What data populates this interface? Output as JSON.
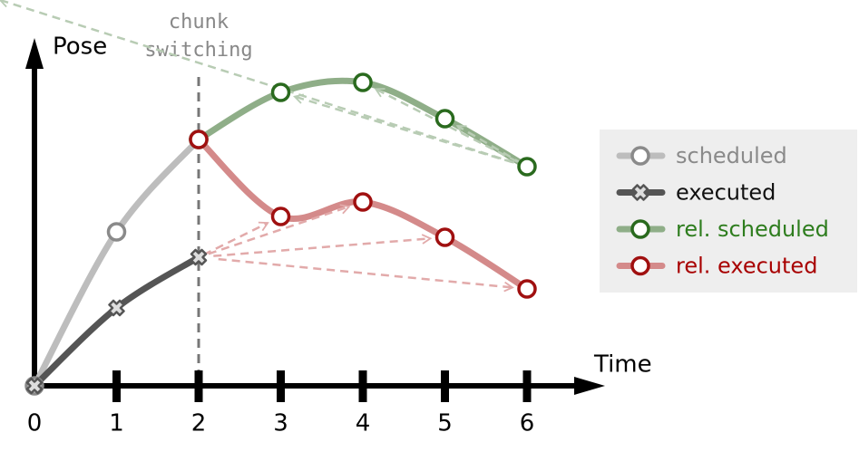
{
  "chart_data": {
    "type": "line",
    "x_label": "Time",
    "y_label": "Pose",
    "annotation": [
      "chunk",
      "switching"
    ],
    "annotation_x": 2,
    "xlim": [
      0,
      6
    ],
    "xticks": [
      0,
      1,
      2,
      3,
      4,
      5,
      6
    ],
    "ylim": [
      0,
      3.8
    ],
    "legend": "right",
    "series": [
      {
        "name": "scheduled",
        "color": "#bdbdbd",
        "marker_color": "#8a8a8a",
        "text_color": "#8a8a8a",
        "marker": "o",
        "x": [
          0,
          1,
          2
        ],
        "values": [
          0,
          1.7,
          2.72
        ]
      },
      {
        "name": "executed",
        "color": "#555555",
        "marker_color": "#555555",
        "text_color": "#111111",
        "marker": "x",
        "x": [
          0,
          1,
          2
        ],
        "values": [
          0,
          0.86,
          1.42
        ]
      },
      {
        "name": "rel. scheduled",
        "color": "#8fae88",
        "marker_color": "#2a6a1e",
        "text_color": "#2e7d1e",
        "marker": "o",
        "x": [
          2,
          3,
          4,
          5,
          6
        ],
        "values": [
          2.72,
          3.24,
          3.35,
          2.95,
          2.42
        ]
      },
      {
        "name": "rel. executed",
        "color": "#d48a8a",
        "marker_color": "#a01010",
        "text_color": "#a80000",
        "marker": "o",
        "x": [
          2,
          3,
          4,
          5,
          6
        ],
        "values": [
          2.72,
          1.87,
          2.03,
          1.64,
          1.07
        ]
      }
    ]
  }
}
